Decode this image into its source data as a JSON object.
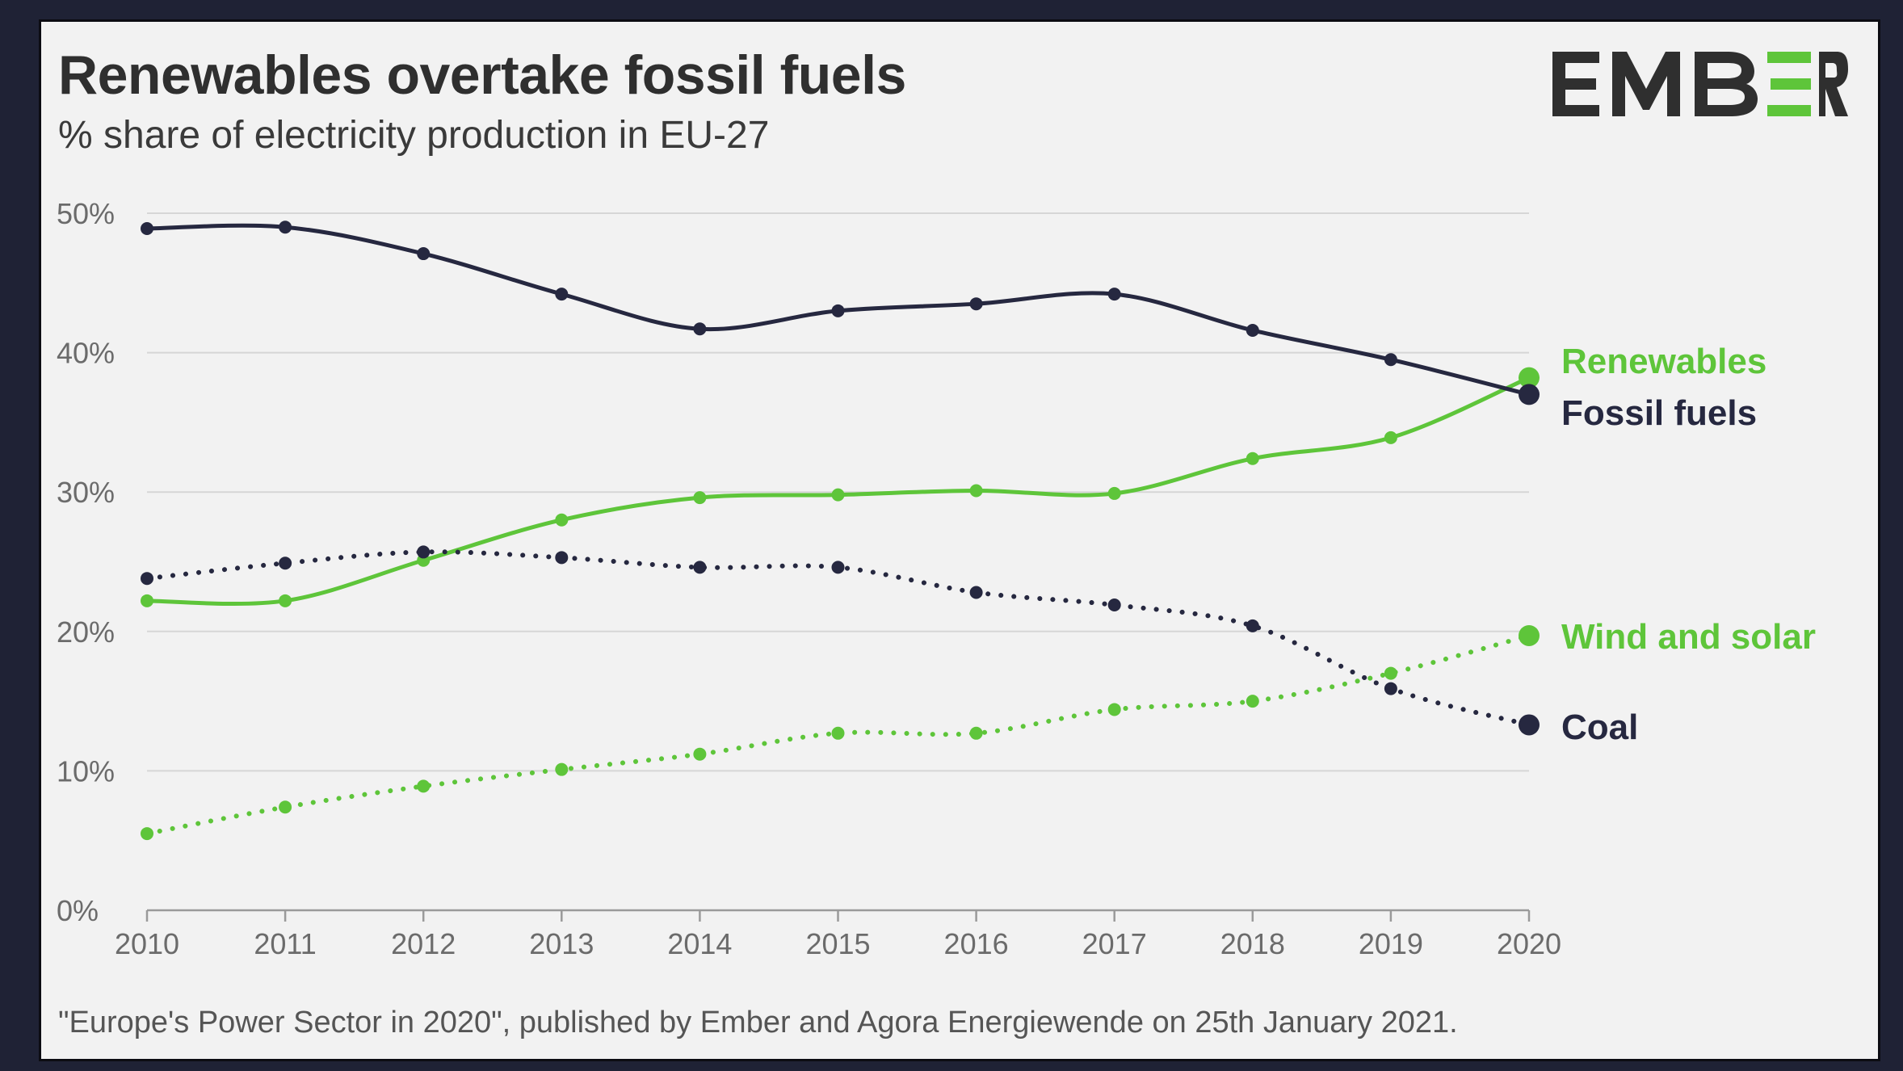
{
  "header": {
    "title": "Renewables overtake fossil fuels",
    "subtitle": "% share of electricity production in EU-27"
  },
  "logo": {
    "text": "EMBER",
    "icon": "ember-logo"
  },
  "footer": {
    "source": "\"Europe's Power Sector in 2020\", published by Ember and Agora Energiewende on 25th January 2021."
  },
  "colors": {
    "renewables": "#5ec53a",
    "fossil": "#262840",
    "grid": "#d6d6d6",
    "background": "#f2f2f2"
  },
  "chart_data": {
    "type": "line",
    "title": "Renewables overtake fossil fuels",
    "subtitle": "% share of electricity production in EU-27",
    "x": [
      2010,
      2011,
      2012,
      2013,
      2014,
      2015,
      2016,
      2017,
      2018,
      2019,
      2020
    ],
    "x_tick_labels": [
      "2010",
      "2011",
      "2012",
      "2013",
      "2014",
      "2015",
      "2016",
      "2017",
      "2018",
      "2019",
      "2020"
    ],
    "y_tick_labels": [
      "0%",
      "10%",
      "20%",
      "30%",
      "40%",
      "50%"
    ],
    "y_ticks": [
      0,
      10,
      20,
      30,
      40,
      50
    ],
    "ylim": [
      0,
      50
    ],
    "xlim": [
      2010,
      2020
    ],
    "grid": true,
    "legend": "direct labels at right end of lines",
    "series": [
      {
        "name": "Renewables",
        "color": "#5ec53a",
        "style": "solid",
        "values": [
          22.2,
          22.2,
          25.1,
          28.0,
          29.6,
          29.8,
          30.1,
          29.9,
          32.4,
          33.9,
          38.2
        ]
      },
      {
        "name": "Fossil fuels",
        "color": "#262840",
        "style": "solid",
        "values": [
          48.9,
          49.0,
          47.1,
          44.2,
          41.7,
          43.0,
          43.5,
          44.2,
          41.6,
          39.5,
          37.0
        ]
      },
      {
        "name": "Wind and solar",
        "color": "#5ec53a",
        "style": "dotted",
        "values": [
          5.5,
          7.4,
          8.9,
          10.1,
          11.2,
          12.7,
          12.7,
          14.4,
          15.0,
          17.0,
          19.7
        ]
      },
      {
        "name": "Coal",
        "color": "#262840",
        "style": "dotted",
        "values": [
          23.8,
          24.9,
          25.7,
          25.3,
          24.6,
          24.6,
          22.8,
          21.9,
          20.4,
          15.9,
          13.3
        ]
      }
    ]
  }
}
